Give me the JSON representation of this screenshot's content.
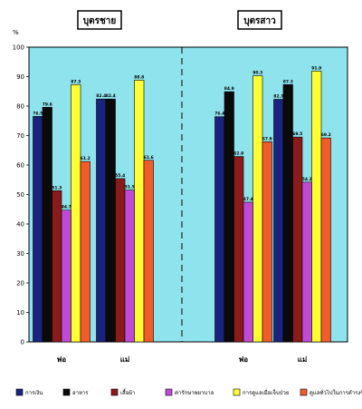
{
  "chart_data": {
    "type": "bar",
    "ylabel": "%",
    "ylim": [
      0,
      100
    ],
    "yticks": [
      0,
      10,
      20,
      30,
      40,
      50,
      60,
      70,
      80,
      90,
      100
    ],
    "panels": [
      {
        "title": "บุตรชาย",
        "categories": [
          "พ่อ",
          "แม่"
        ],
        "series": [
          {
            "name": "การเงิน",
            "values": [
              76.5,
              82.4
            ]
          },
          {
            "name": "อาหาร",
            "values": [
              79.6,
              82.4
            ]
          },
          {
            "name": "เสื้อผ้า",
            "values": [
              51.3,
              55.4
            ]
          },
          {
            "name": "ค่ารักษาพยาบาล",
            "values": [
              44.7,
              51.5
            ]
          },
          {
            "name": "การดูแลเมื่อเจ็บป่วย",
            "values": [
              87.3,
              88.8
            ]
          },
          {
            "name": "ดูแลทั่วไปในการดำรงชีวิตประจำวัน",
            "values": [
              61.2,
              61.6
            ]
          }
        ]
      },
      {
        "title": "บุตรสาว",
        "categories": [
          "พ่อ",
          "แม่"
        ],
        "series": [
          {
            "name": "การเงิน",
            "values": [
              76.4,
              82.3
            ]
          },
          {
            "name": "อาหาร",
            "values": [
              84.9,
              87.3
            ]
          },
          {
            "name": "เสื้อผ้า",
            "values": [
              62.9,
              69.5
            ]
          },
          {
            "name": "ค่ารักษาพยาบาล",
            "values": [
              47.4,
              54.2
            ]
          },
          {
            "name": "การดูแลเมื่อเจ็บป่วย",
            "values": [
              90.3,
              91.9
            ]
          },
          {
            "name": "ดูแลทั่วไปในการดำรงชีวิตประจำวัน",
            "values": [
              67.9,
              69.2
            ]
          }
        ]
      }
    ],
    "colors": [
      "#1a237e",
      "#0a0a0a",
      "#8b1a1a",
      "#c04ad8",
      "#ffff33",
      "#f25c2a"
    ],
    "plot_background": "#8fe3ec",
    "legend_position": "bottom",
    "grid": false
  }
}
